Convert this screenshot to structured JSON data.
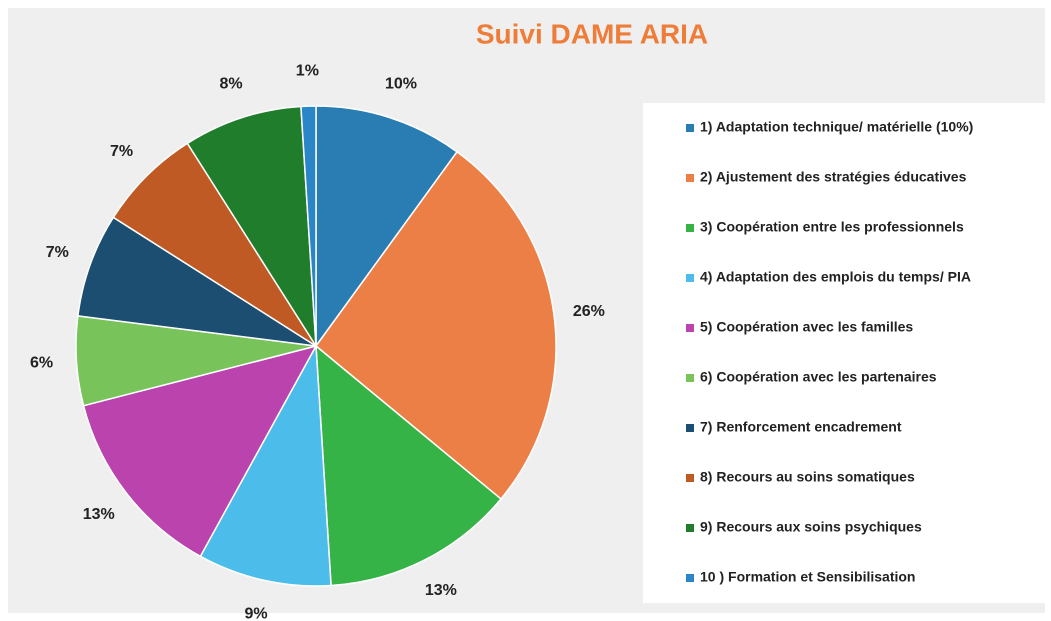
{
  "chart_data": {
    "type": "pie",
    "title": "Suivi DAME ARIA",
    "categories": [
      "1) Adaptation technique/ matérielle (10%)",
      "2) Ajustement des stratégies éducatives",
      "3) Coopération entre les professionnels",
      "4) Adaptation des emplois du temps/ PIA",
      "5) Coopération avec les familles",
      "6) Coopération avec les partenaires",
      "7) Renforcement encadrement",
      "8) Recours au soins somatiques",
      "9) Recours aux soins psychiques",
      "10 ) Formation et Sensibilisation"
    ],
    "values": [
      10,
      26,
      13,
      9,
      13,
      6,
      7,
      7,
      8,
      1
    ],
    "value_labels": [
      "10%",
      "26%",
      "13%",
      "9%",
      "13%",
      "6%",
      "7%",
      "7%",
      "8%",
      "1%"
    ],
    "colors": [
      "#2a7db3",
      "#ec7f45",
      "#36b347",
      "#4cbdea",
      "#bb43ad",
      "#79c45a",
      "#1b4e70",
      "#bf5a25",
      "#1f7d2c",
      "#2a86c6"
    ],
    "legend": "right"
  }
}
